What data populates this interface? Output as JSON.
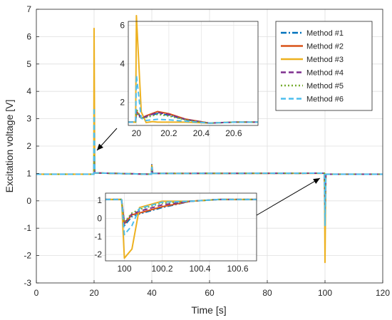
{
  "chart_data": {
    "type": "line",
    "xlabel": "Time [s]",
    "ylabel": "Excitation voltage [V]",
    "xlim": [
      0,
      120
    ],
    "ylim": [
      -3,
      7
    ],
    "xticks": [
      "0",
      "20",
      "40",
      "60",
      "80",
      "100",
      "120"
    ],
    "yticks": [
      "-3",
      "-2",
      "-1",
      "0",
      "1",
      "2",
      "3",
      "4",
      "5",
      "6",
      "7"
    ],
    "grid": true,
    "legend_position": "top-right",
    "series": [
      {
        "name": "Method #1",
        "color": "#0072BD",
        "style": "dash-dot",
        "peak_20": 1.4,
        "dip_100": -0.35
      },
      {
        "name": "Method #2",
        "color": "#D95319",
        "style": "solid",
        "peak_20": 1.55,
        "dip_100": -0.3
      },
      {
        "name": "Method #3",
        "color": "#EDB120",
        "style": "solid",
        "peak_20": 6.3,
        "dip_100": -2.25
      },
      {
        "name": "Method #4",
        "color": "#7E2F8E",
        "style": "dash",
        "peak_20": 1.6,
        "dip_100": -0.3
      },
      {
        "name": "Method #5",
        "color": "#77AC30",
        "style": "dot",
        "peak_20": 1.65,
        "dip_100": -0.25
      },
      {
        "name": "Method #6",
        "color": "#4DBEEE",
        "style": "dash",
        "peak_20": 3.4,
        "dip_100": -0.9
      }
    ],
    "baseline": 0.97,
    "event_times": [
      20,
      40,
      100
    ],
    "insets": [
      {
        "id": "inset-20s",
        "xlim": [
          19.95,
          20.75
        ],
        "ylim": [
          0.8,
          6.2
        ],
        "xticks": [
          "20",
          "20.2",
          "20.4",
          "20.6"
        ],
        "yticks": [
          "2",
          "4",
          "6"
        ]
      },
      {
        "id": "inset-100s",
        "xlim": [
          99.9,
          100.7
        ],
        "ylim": [
          -2.35,
          1.4
        ],
        "xticks": [
          "100",
          "100.2",
          "100.4",
          "100.6"
        ],
        "yticks": [
          "-2",
          "-1",
          "0",
          "1"
        ]
      }
    ]
  }
}
